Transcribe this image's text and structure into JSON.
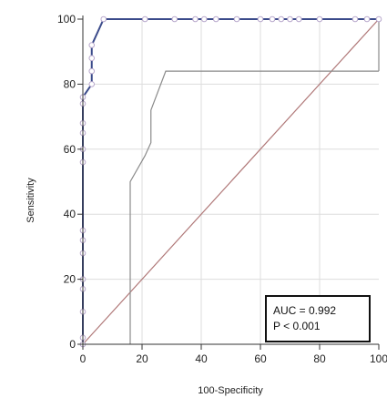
{
  "chart_data": {
    "type": "line",
    "xlabel": "100-Specificity",
    "ylabel": "Sensitivity",
    "xlim": [
      0,
      100
    ],
    "ylim": [
      0,
      100
    ],
    "xticks": [
      0,
      20,
      40,
      60,
      80,
      100
    ],
    "yticks": [
      0,
      20,
      40,
      60,
      80,
      100
    ],
    "grid": true,
    "colors": {
      "roc": "#3a4a8a",
      "ci": "#8a8a8a",
      "diagonal": "#b07878",
      "marker_fill": "#ffffff",
      "marker_stroke": "#b8a8cc",
      "grid": "#dddddd"
    },
    "roc_curve": [
      [
        0,
        0
      ],
      [
        0,
        2
      ],
      [
        0,
        10
      ],
      [
        0,
        17
      ],
      [
        0,
        20
      ],
      [
        0,
        28
      ],
      [
        0,
        32
      ],
      [
        0,
        35
      ],
      [
        0,
        56
      ],
      [
        0,
        60
      ],
      [
        0,
        65
      ],
      [
        0,
        68
      ],
      [
        0,
        74
      ],
      [
        0,
        76
      ],
      [
        3,
        80
      ],
      [
        3,
        84
      ],
      [
        3,
        88
      ],
      [
        3,
        92
      ],
      [
        7,
        100
      ],
      [
        21,
        100
      ],
      [
        31,
        100
      ],
      [
        38,
        100
      ],
      [
        41,
        100
      ],
      [
        45,
        100
      ],
      [
        52,
        100
      ],
      [
        60,
        100
      ],
      [
        64,
        100
      ],
      [
        67,
        100
      ],
      [
        70,
        100
      ],
      [
        73,
        100
      ],
      [
        80,
        100
      ],
      [
        92,
        100
      ],
      [
        96,
        100
      ],
      [
        100,
        100
      ]
    ],
    "ci_curve": [
      [
        16,
        0
      ],
      [
        16,
        50
      ],
      [
        21,
        58
      ],
      [
        23,
        62
      ],
      [
        23,
        72
      ],
      [
        28,
        84
      ],
      [
        100,
        84
      ]
    ],
    "ci_right": [
      [
        100,
        84
      ],
      [
        100,
        100
      ]
    ],
    "diagonal": [
      [
        0,
        0
      ],
      [
        100,
        100
      ]
    ],
    "annotation": {
      "auc": "AUC = 0.992",
      "p": "P < 0.001"
    }
  }
}
